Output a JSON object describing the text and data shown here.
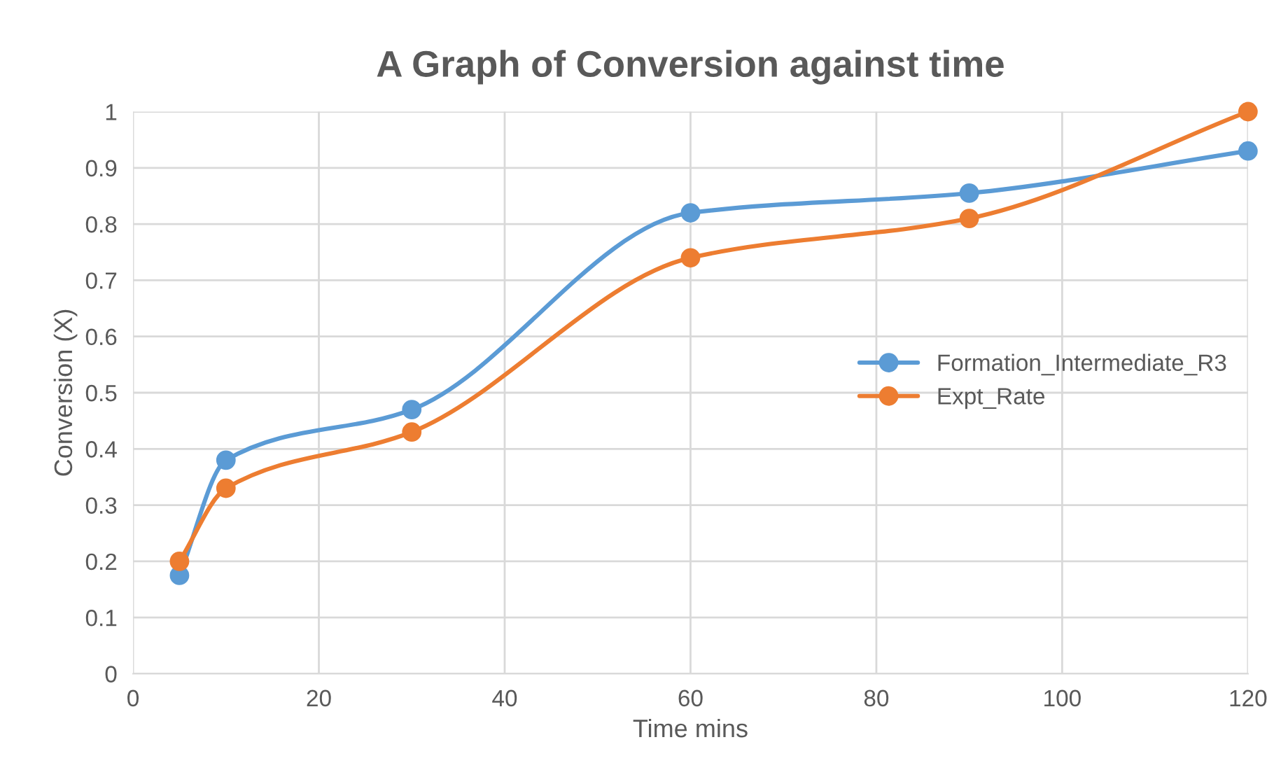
{
  "chart_data": {
    "type": "line",
    "title": "A Graph of Conversion against time",
    "xlabel": "Time mins",
    "ylabel": "Conversion (X)",
    "x": [
      5,
      10,
      30,
      60,
      90,
      120
    ],
    "series": [
      {
        "name": "Formation_Intermediate_R3",
        "color": "#5b9bd5",
        "values": [
          0.175,
          0.38,
          0.47,
          0.82,
          0.855,
          0.93
        ]
      },
      {
        "name": "Expt_Rate",
        "color": "#ed7d31",
        "values": [
          0.2,
          0.33,
          0.43,
          0.74,
          0.81,
          1.0
        ]
      }
    ],
    "xlim": [
      0,
      120
    ],
    "xticks": [
      0,
      20,
      40,
      60,
      80,
      100,
      120
    ],
    "ylim": [
      0,
      1
    ],
    "yticks": [
      0,
      0.1,
      0.2,
      0.3,
      0.4,
      0.5,
      0.6,
      0.7,
      0.8,
      0.9,
      1
    ],
    "grid": true,
    "legend": "right",
    "marker": "circle",
    "line_style": "solid"
  }
}
